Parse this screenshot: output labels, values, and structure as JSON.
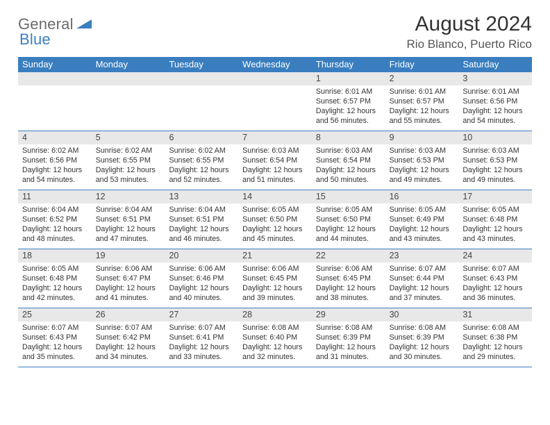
{
  "brand": {
    "word1": "General",
    "word2": "Blue",
    "word1_color": "#6b6b6b",
    "word2_color": "#3a7ebf",
    "triangle_color": "#3a7ebf",
    "font_size": 22
  },
  "title": {
    "month_year": "August 2024",
    "location": "Rio Blanco, Puerto Rico",
    "month_fontsize": 30,
    "location_fontsize": 17,
    "month_color": "#333333",
    "location_color": "#555555"
  },
  "styling": {
    "header_bg": "#3a7ebf",
    "header_text_color": "#ffffff",
    "header_fontsize": 13,
    "daynum_bg": "#e8e8e8",
    "daynum_color": "#444444",
    "daynum_fontsize": 12.5,
    "body_fontsize": 10.7,
    "body_color": "#333333",
    "row_border_color": "#3a7ebf",
    "page_bg": "#ffffff",
    "columns": 7,
    "rows": 5
  },
  "weekdays": [
    "Sunday",
    "Monday",
    "Tuesday",
    "Wednesday",
    "Thursday",
    "Friday",
    "Saturday"
  ],
  "weeks": [
    [
      {
        "blank": true
      },
      {
        "blank": true
      },
      {
        "blank": true
      },
      {
        "blank": true
      },
      {
        "day": "1",
        "sunrise": "Sunrise: 6:01 AM",
        "sunset": "Sunset: 6:57 PM",
        "daylight": "Daylight: 12 hours and 56 minutes."
      },
      {
        "day": "2",
        "sunrise": "Sunrise: 6:01 AM",
        "sunset": "Sunset: 6:57 PM",
        "daylight": "Daylight: 12 hours and 55 minutes."
      },
      {
        "day": "3",
        "sunrise": "Sunrise: 6:01 AM",
        "sunset": "Sunset: 6:56 PM",
        "daylight": "Daylight: 12 hours and 54 minutes."
      }
    ],
    [
      {
        "day": "4",
        "sunrise": "Sunrise: 6:02 AM",
        "sunset": "Sunset: 6:56 PM",
        "daylight": "Daylight: 12 hours and 54 minutes."
      },
      {
        "day": "5",
        "sunrise": "Sunrise: 6:02 AM",
        "sunset": "Sunset: 6:55 PM",
        "daylight": "Daylight: 12 hours and 53 minutes."
      },
      {
        "day": "6",
        "sunrise": "Sunrise: 6:02 AM",
        "sunset": "Sunset: 6:55 PM",
        "daylight": "Daylight: 12 hours and 52 minutes."
      },
      {
        "day": "7",
        "sunrise": "Sunrise: 6:03 AM",
        "sunset": "Sunset: 6:54 PM",
        "daylight": "Daylight: 12 hours and 51 minutes."
      },
      {
        "day": "8",
        "sunrise": "Sunrise: 6:03 AM",
        "sunset": "Sunset: 6:54 PM",
        "daylight": "Daylight: 12 hours and 50 minutes."
      },
      {
        "day": "9",
        "sunrise": "Sunrise: 6:03 AM",
        "sunset": "Sunset: 6:53 PM",
        "daylight": "Daylight: 12 hours and 49 minutes."
      },
      {
        "day": "10",
        "sunrise": "Sunrise: 6:03 AM",
        "sunset": "Sunset: 6:53 PM",
        "daylight": "Daylight: 12 hours and 49 minutes."
      }
    ],
    [
      {
        "day": "11",
        "sunrise": "Sunrise: 6:04 AM",
        "sunset": "Sunset: 6:52 PM",
        "daylight": "Daylight: 12 hours and 48 minutes."
      },
      {
        "day": "12",
        "sunrise": "Sunrise: 6:04 AM",
        "sunset": "Sunset: 6:51 PM",
        "daylight": "Daylight: 12 hours and 47 minutes."
      },
      {
        "day": "13",
        "sunrise": "Sunrise: 6:04 AM",
        "sunset": "Sunset: 6:51 PM",
        "daylight": "Daylight: 12 hours and 46 minutes."
      },
      {
        "day": "14",
        "sunrise": "Sunrise: 6:05 AM",
        "sunset": "Sunset: 6:50 PM",
        "daylight": "Daylight: 12 hours and 45 minutes."
      },
      {
        "day": "15",
        "sunrise": "Sunrise: 6:05 AM",
        "sunset": "Sunset: 6:50 PM",
        "daylight": "Daylight: 12 hours and 44 minutes."
      },
      {
        "day": "16",
        "sunrise": "Sunrise: 6:05 AM",
        "sunset": "Sunset: 6:49 PM",
        "daylight": "Daylight: 12 hours and 43 minutes."
      },
      {
        "day": "17",
        "sunrise": "Sunrise: 6:05 AM",
        "sunset": "Sunset: 6:48 PM",
        "daylight": "Daylight: 12 hours and 43 minutes."
      }
    ],
    [
      {
        "day": "18",
        "sunrise": "Sunrise: 6:05 AM",
        "sunset": "Sunset: 6:48 PM",
        "daylight": "Daylight: 12 hours and 42 minutes."
      },
      {
        "day": "19",
        "sunrise": "Sunrise: 6:06 AM",
        "sunset": "Sunset: 6:47 PM",
        "daylight": "Daylight: 12 hours and 41 minutes."
      },
      {
        "day": "20",
        "sunrise": "Sunrise: 6:06 AM",
        "sunset": "Sunset: 6:46 PM",
        "daylight": "Daylight: 12 hours and 40 minutes."
      },
      {
        "day": "21",
        "sunrise": "Sunrise: 6:06 AM",
        "sunset": "Sunset: 6:45 PM",
        "daylight": "Daylight: 12 hours and 39 minutes."
      },
      {
        "day": "22",
        "sunrise": "Sunrise: 6:06 AM",
        "sunset": "Sunset: 6:45 PM",
        "daylight": "Daylight: 12 hours and 38 minutes."
      },
      {
        "day": "23",
        "sunrise": "Sunrise: 6:07 AM",
        "sunset": "Sunset: 6:44 PM",
        "daylight": "Daylight: 12 hours and 37 minutes."
      },
      {
        "day": "24",
        "sunrise": "Sunrise: 6:07 AM",
        "sunset": "Sunset: 6:43 PM",
        "daylight": "Daylight: 12 hours and 36 minutes."
      }
    ],
    [
      {
        "day": "25",
        "sunrise": "Sunrise: 6:07 AM",
        "sunset": "Sunset: 6:43 PM",
        "daylight": "Daylight: 12 hours and 35 minutes."
      },
      {
        "day": "26",
        "sunrise": "Sunrise: 6:07 AM",
        "sunset": "Sunset: 6:42 PM",
        "daylight": "Daylight: 12 hours and 34 minutes."
      },
      {
        "day": "27",
        "sunrise": "Sunrise: 6:07 AM",
        "sunset": "Sunset: 6:41 PM",
        "daylight": "Daylight: 12 hours and 33 minutes."
      },
      {
        "day": "28",
        "sunrise": "Sunrise: 6:08 AM",
        "sunset": "Sunset: 6:40 PM",
        "daylight": "Daylight: 12 hours and 32 minutes."
      },
      {
        "day": "29",
        "sunrise": "Sunrise: 6:08 AM",
        "sunset": "Sunset: 6:39 PM",
        "daylight": "Daylight: 12 hours and 31 minutes."
      },
      {
        "day": "30",
        "sunrise": "Sunrise: 6:08 AM",
        "sunset": "Sunset: 6:39 PM",
        "daylight": "Daylight: 12 hours and 30 minutes."
      },
      {
        "day": "31",
        "sunrise": "Sunrise: 6:08 AM",
        "sunset": "Sunset: 6:38 PM",
        "daylight": "Daylight: 12 hours and 29 minutes."
      }
    ]
  ]
}
